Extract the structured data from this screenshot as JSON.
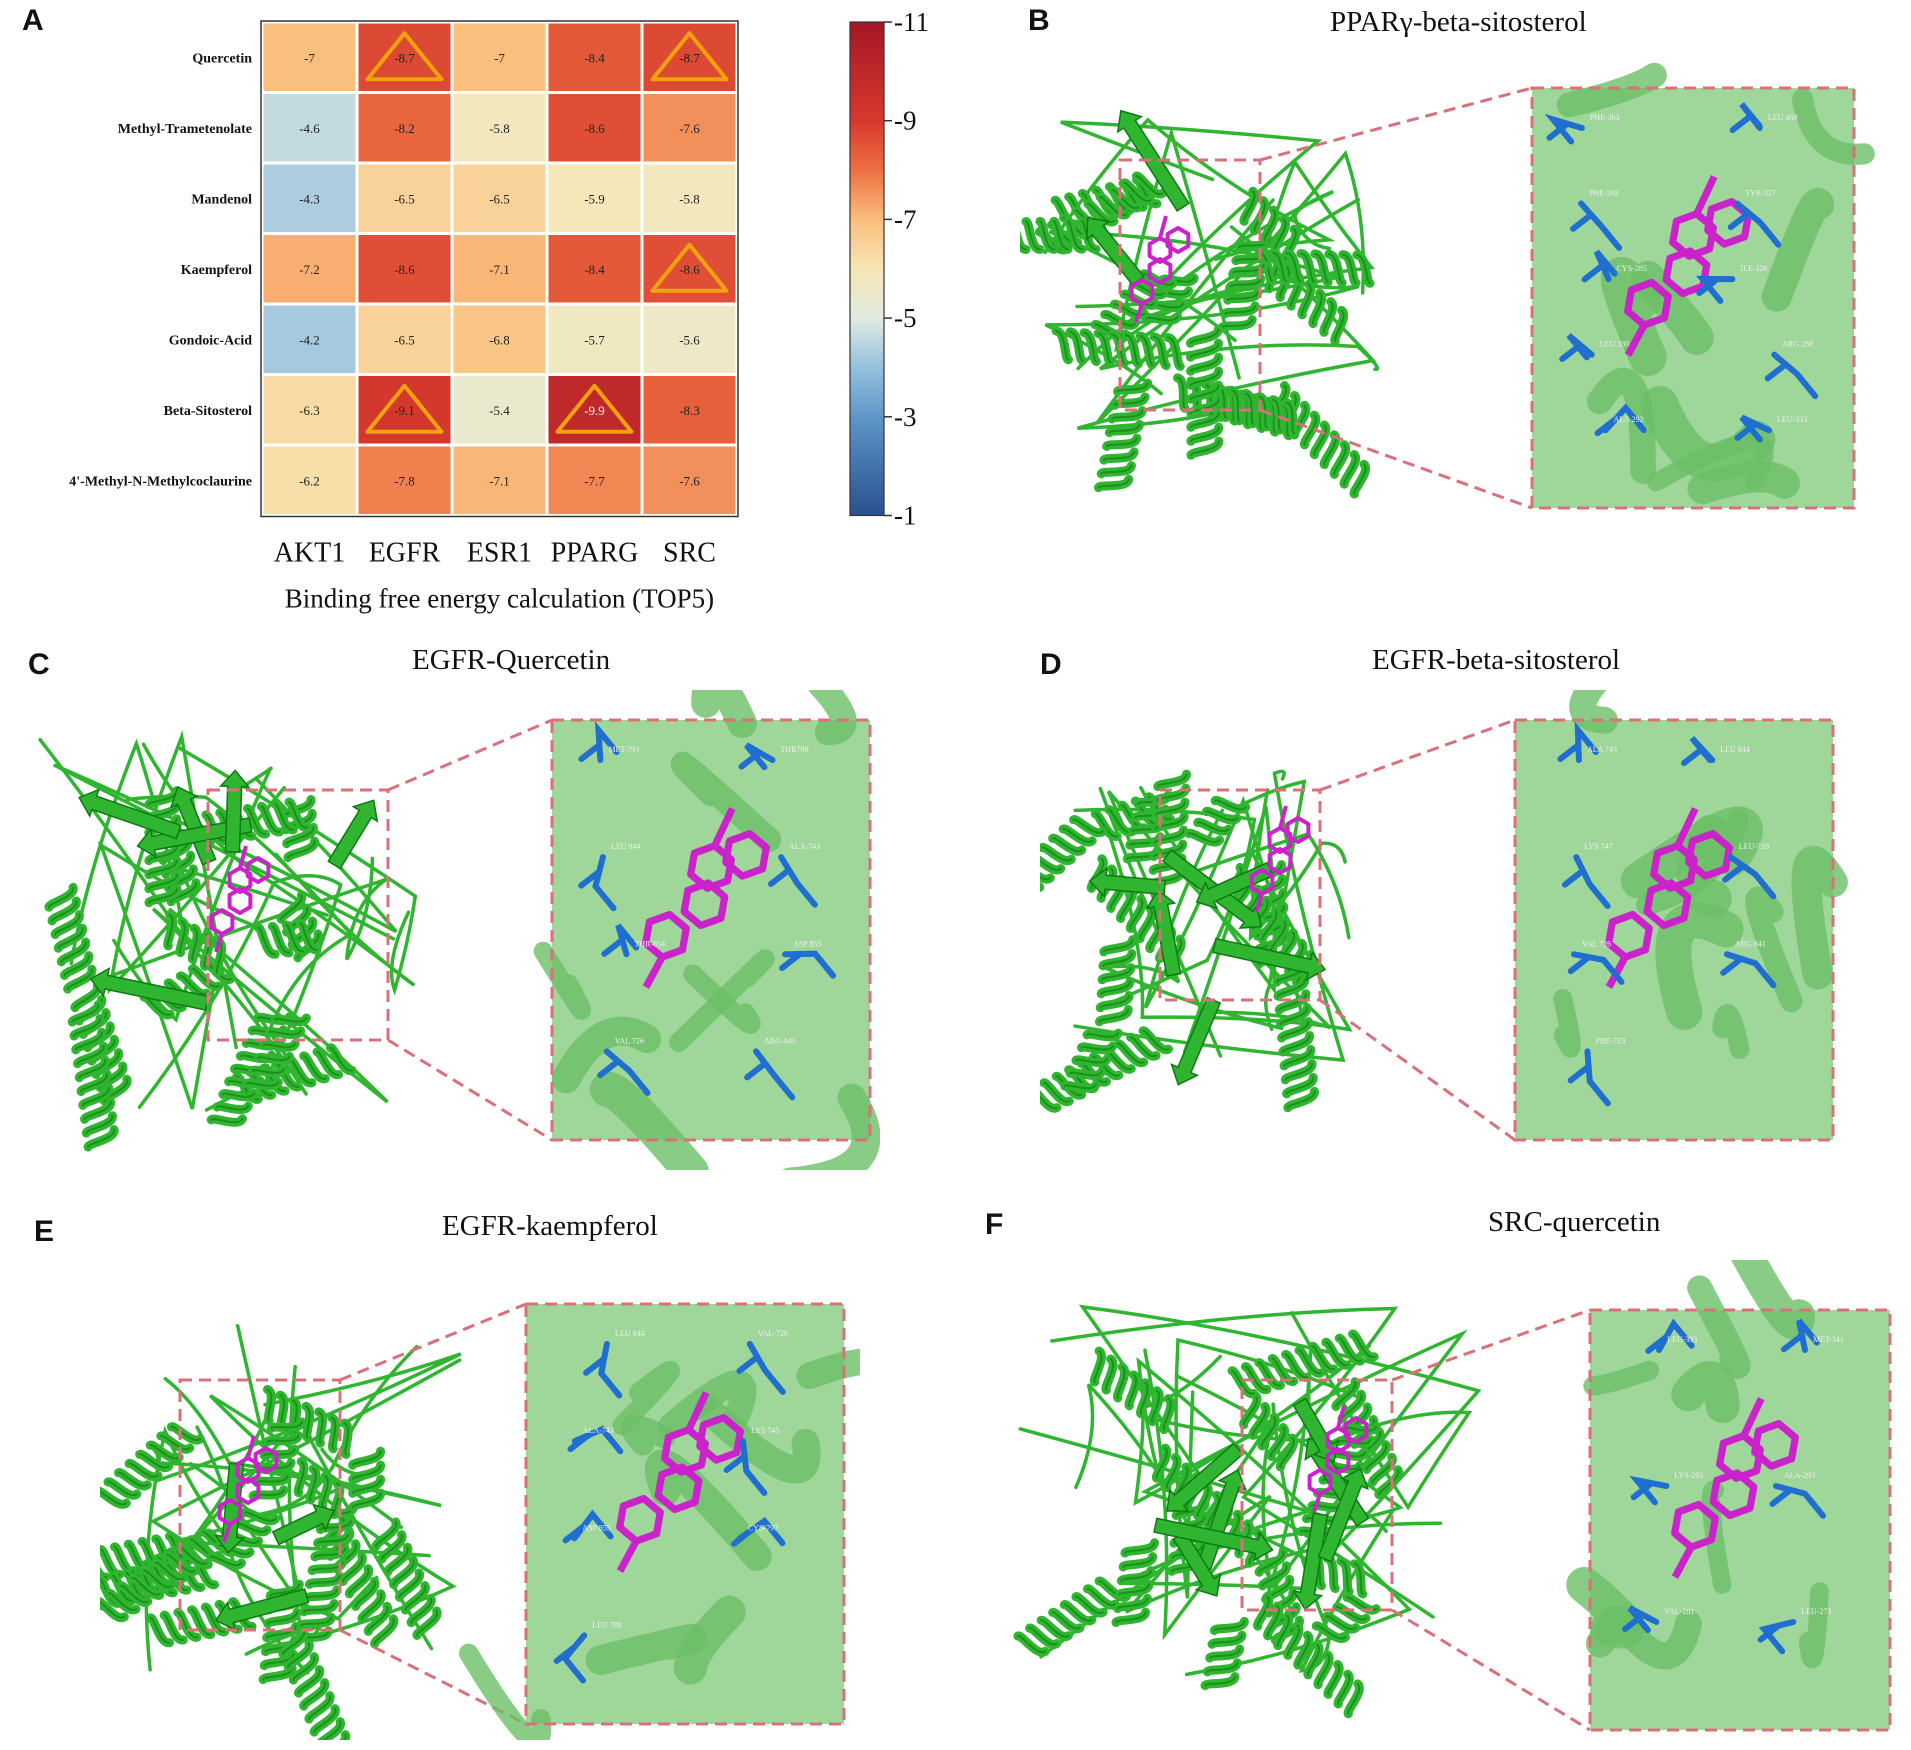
{
  "panels": {
    "A": {
      "label": "A"
    },
    "B": {
      "label": "B",
      "title": "PPARγ-beta-sitosterol",
      "residues": [
        "PHE-363",
        "LEU 469",
        "PHE-282",
        "TYR-327",
        "CYS-285",
        "ILE-326",
        "LEU 330",
        "ARG 288",
        "ALA 292",
        "LEU-333"
      ]
    },
    "C": {
      "label": "C",
      "title": "EGFR-Quercetin",
      "residues": [
        "MET-793",
        "THR790",
        "LEU 844",
        "ALA-743",
        "THR-854",
        "ASP 855",
        "VAL 726",
        "ARG-841"
      ]
    },
    "D": {
      "label": "D",
      "title": "EGFR-beta-sitosterol",
      "residues": [
        "ALA 743",
        "LEU 844",
        "LYS 747",
        "LEU-718",
        "VAL 726",
        "ARG 841",
        "PHE-723"
      ]
    },
    "E": {
      "label": "E",
      "title": "EGFR-kaempferol",
      "residues": [
        "LEU 844",
        "VAL-726",
        "ALA-743",
        "LYS 745",
        "ASP 855",
        "CYS-797",
        "LEU 788"
      ]
    },
    "F": {
      "label": "F",
      "title": "SRC-quercetin",
      "residues": [
        "LEU-393",
        "MET-341",
        "LYS-295",
        "ALA-293",
        "VAL-281",
        "LEU-273"
      ]
    }
  },
  "chart_data": {
    "type": "heatmap",
    "rows": [
      "Quercetin",
      "Methyl-Trametenolate",
      "Mandenol",
      "Kaempferol",
      "Gondoic-Acid",
      "Beta-Sitosterol",
      "4'-Methyl-N-Methylcoclaurine"
    ],
    "columns": [
      "AKT1",
      "EGFR",
      "ESR1",
      "PPARG",
      "SRC"
    ],
    "values": [
      [
        -7,
        -8.7,
        -7,
        -8.4,
        -8.7
      ],
      [
        -4.6,
        -8.2,
        -5.8,
        -8.6,
        -7.6
      ],
      [
        -4.3,
        -6.5,
        -6.5,
        -5.9,
        -5.8
      ],
      [
        -7.2,
        -8.6,
        -7.1,
        -8.4,
        -8.6
      ],
      [
        -4.2,
        -6.5,
        -6.8,
        -5.7,
        -5.6
      ],
      [
        -6.3,
        -9.1,
        -5.4,
        -9.9,
        -8.3
      ],
      [
        -6.2,
        -7.8,
        -7.1,
        -7.7,
        -7.6
      ]
    ],
    "highlighted": [
      [
        0,
        1
      ],
      [
        0,
        4
      ],
      [
        3,
        4
      ],
      [
        5,
        1
      ],
      [
        5,
        3
      ]
    ],
    "xlabel": "Binding free energy calculation (TOP5)",
    "colorbar": {
      "range": [
        -1,
        -11
      ],
      "ticks": [
        "-11",
        "-9",
        "-7",
        "-5",
        "-3",
        "-1"
      ]
    },
    "colors": {
      "low": "#2b5a96",
      "mid": "#e9ecde",
      "high": "#b3202a",
      "highlight": "#f2a20c"
    }
  }
}
